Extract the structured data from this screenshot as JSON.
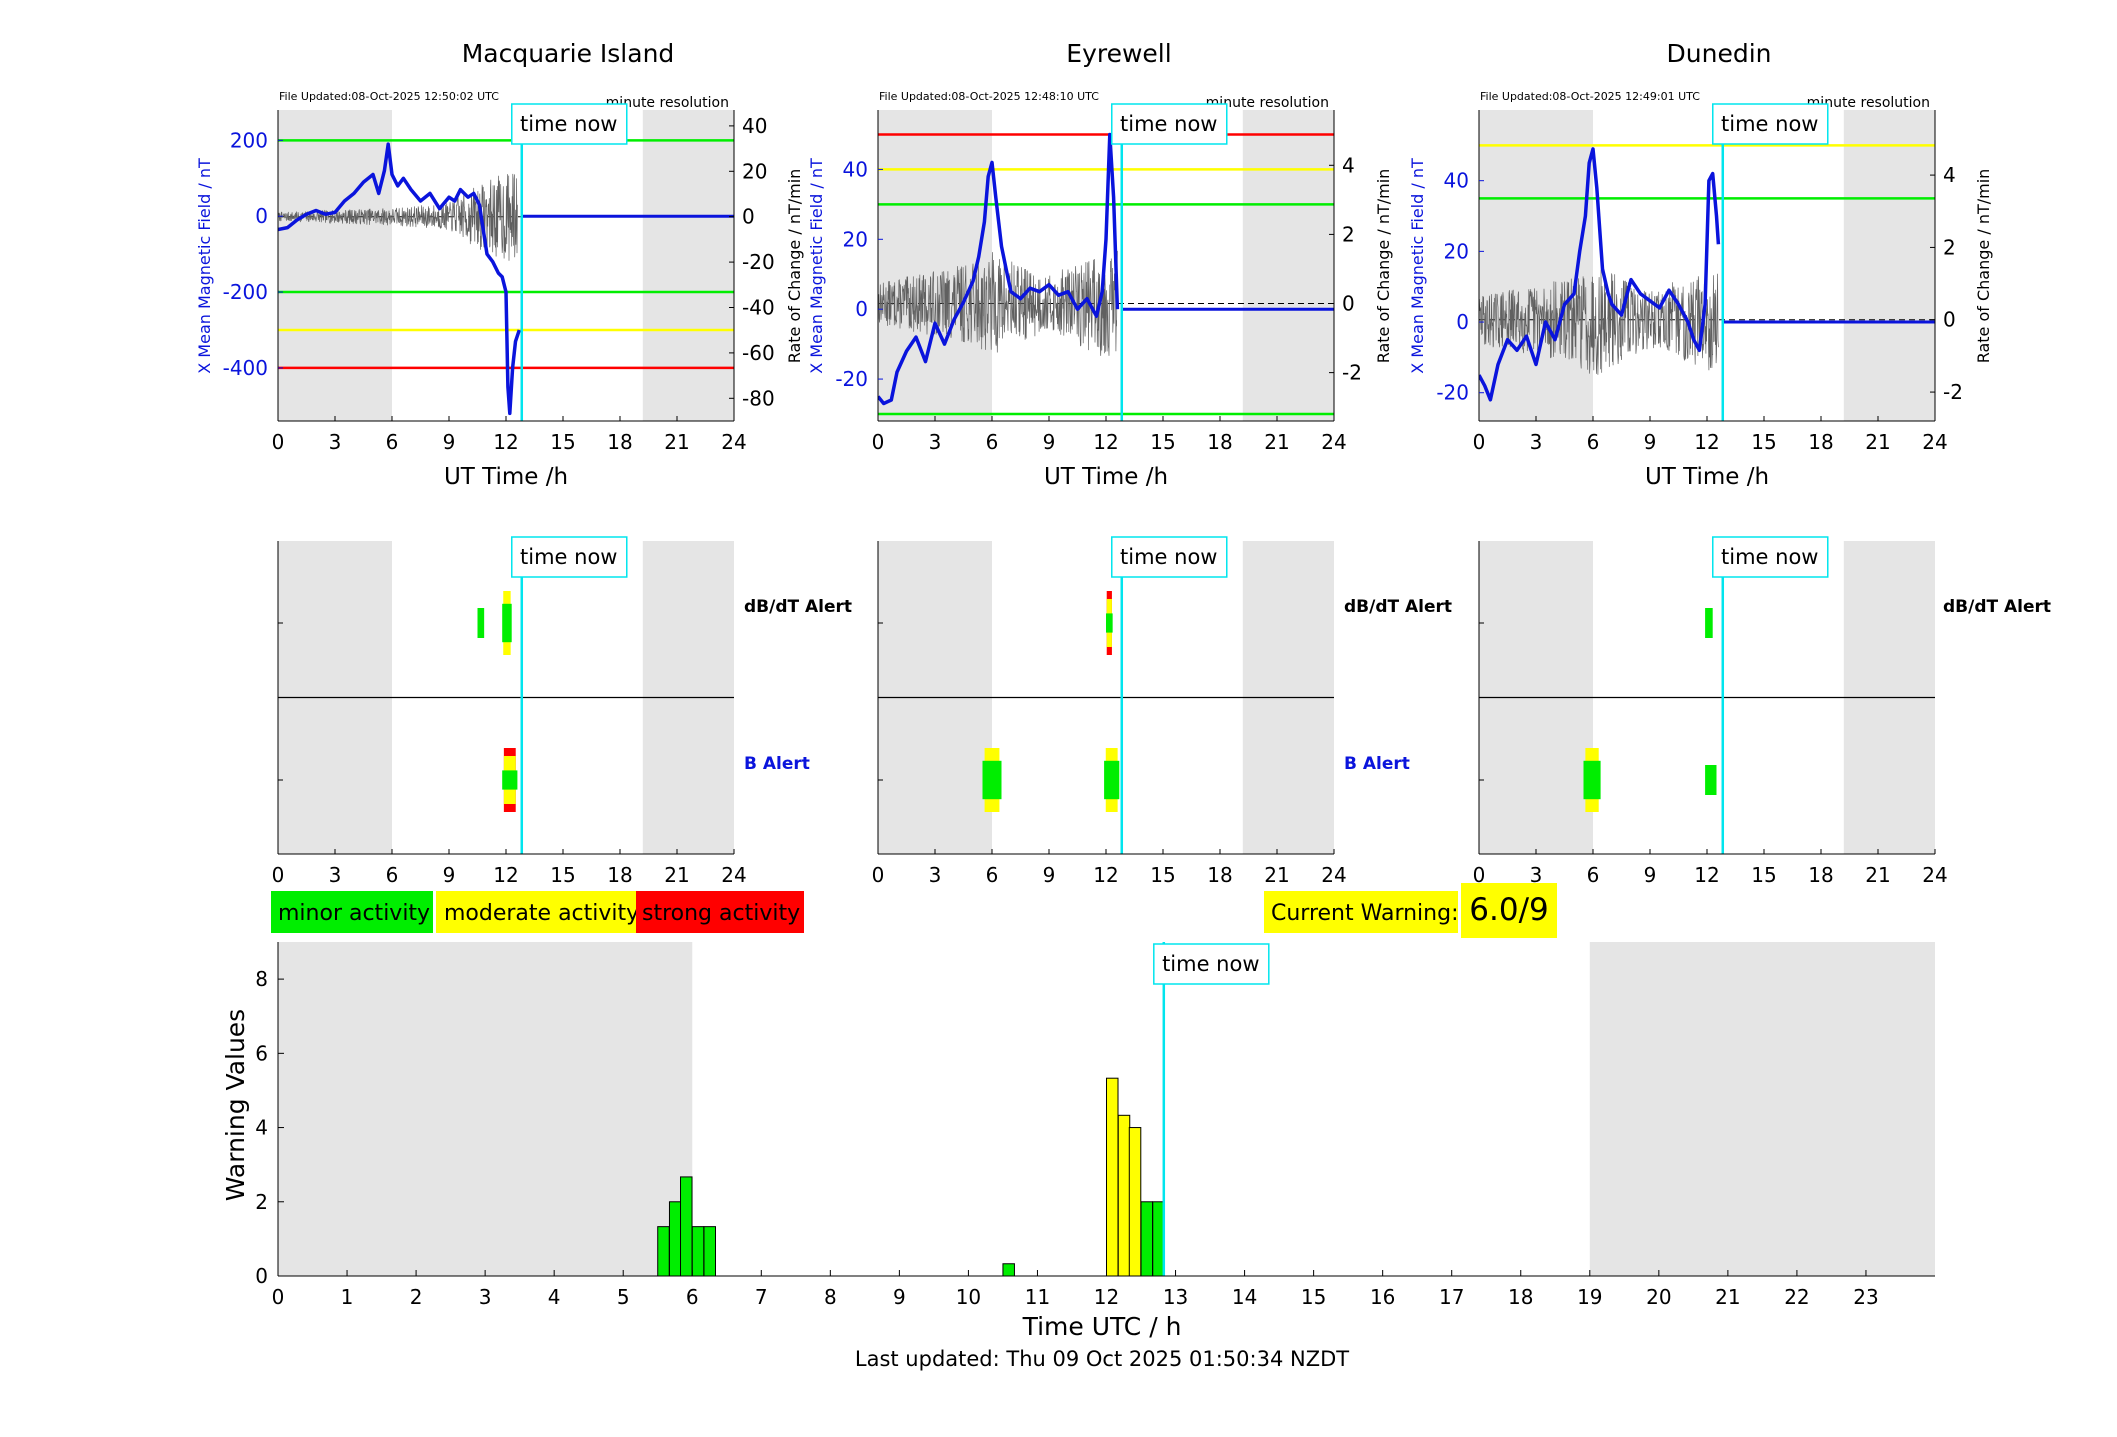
{
  "colors": {
    "field_line": "#0a14dc",
    "noise_line": "#606060",
    "zero_dash": "#000000",
    "time_now": "#00e5ee",
    "shade": "#e5e5e5",
    "green": "#00ee00",
    "yellow": "#ffff00",
    "red": "#ff0000"
  },
  "labels": {
    "time_now": "time now",
    "minute_resolution": "minute resolution",
    "xlabel_top": "UT Time /h",
    "ylabel_left": "X Mean Magnetic Field / nT",
    "ylabel_right": "Rate of Change / nT/min",
    "dbdt_alert": "dB/dT Alert",
    "b_alert": "B Alert",
    "legend_minor": "minor activity",
    "legend_moderate": "moderate activity",
    "legend_strong": "strong activity",
    "current_warning_label": "Current Warning:",
    "current_warning_value": "6.0/9",
    "bottom_ylabel": "Warning Values",
    "bottom_xlabel": "Time UTC / h",
    "last_updated": "Last updated: Thu 09 Oct 2025 01:50:34 NZDT"
  },
  "chart_data": [
    {
      "type": "line",
      "title": "Macquarie Island",
      "file_updated": "File Updated:08-Oct-2025 12:50:02 UTC",
      "xlabel": "UT Time /h",
      "xlim": [
        0,
        24
      ],
      "xticks": [
        0,
        3,
        6,
        9,
        12,
        15,
        18,
        21,
        24
      ],
      "ylim_left": [
        -540,
        280
      ],
      "yticks_left": [
        -400,
        -200,
        0,
        200
      ],
      "ylim_right": [
        -90,
        47
      ],
      "yticks_right": [
        -80,
        -60,
        -40,
        -20,
        0,
        20,
        40
      ],
      "shaded_hours": [
        [
          0,
          6
        ],
        [
          19.2,
          24
        ]
      ],
      "time_now": 12.83,
      "thresholds": [
        {
          "value": 200,
          "color": "green"
        },
        {
          "value": -200,
          "color": "green"
        },
        {
          "value": -300,
          "color": "yellow"
        },
        {
          "value": -400,
          "color": "red"
        }
      ],
      "series": [
        {
          "axis": "left",
          "style": "field",
          "x": [
            0,
            0.5,
            1,
            1.5,
            2,
            2.5,
            3,
            3.5,
            4,
            4.5,
            5,
            5.3,
            5.6,
            5.8,
            6,
            6.3,
            6.6,
            7,
            7.5,
            8,
            8.5,
            9,
            9.3,
            9.6,
            10,
            10.3,
            10.6,
            11,
            11.3,
            11.6,
            11.8,
            12,
            12.1,
            12.2,
            12.35,
            12.5,
            12.7
          ],
          "y": [
            -35,
            -30,
            -10,
            5,
            15,
            5,
            10,
            40,
            60,
            90,
            110,
            60,
            120,
            190,
            110,
            80,
            100,
            70,
            40,
            60,
            20,
            50,
            40,
            70,
            50,
            60,
            30,
            -100,
            -120,
            -150,
            -160,
            -200,
            -450,
            -520,
            -400,
            -330,
            -300
          ]
        },
        {
          "axis": "left",
          "style": "flat",
          "x": [
            12.83,
            24
          ],
          "y": [
            0,
            0
          ]
        },
        {
          "axis": "right",
          "style": "noise",
          "x0": 0,
          "x1": 12.6,
          "amp": [
            [
              0,
              2
            ],
            [
              6,
              4
            ],
            [
              9,
              6
            ],
            [
              10,
              12
            ],
            [
              12,
              20
            ]
          ],
          "seed": 7
        }
      ]
    },
    {
      "type": "line",
      "title": "Eyrewell",
      "file_updated": "File Updated:08-Oct-2025 12:48:10 UTC",
      "xlabel": "UT Time /h",
      "xlim": [
        0,
        24
      ],
      "xticks": [
        0,
        3,
        6,
        9,
        12,
        15,
        18,
        21,
        24
      ],
      "ylim_left": [
        -32,
        57
      ],
      "yticks_left": [
        -20,
        0,
        20,
        40
      ],
      "ylim_right": [
        -3.4,
        5.6
      ],
      "yticks_right": [
        -2,
        0,
        2,
        4
      ],
      "shaded_hours": [
        [
          0,
          6
        ],
        [
          19.2,
          24
        ]
      ],
      "time_now": 12.83,
      "thresholds": [
        {
          "value": 50,
          "color": "red"
        },
        {
          "value": 40,
          "color": "yellow"
        },
        {
          "value": 30,
          "color": "green"
        },
        {
          "value": -30,
          "color": "green"
        }
      ],
      "series": [
        {
          "axis": "left",
          "style": "field",
          "x": [
            0,
            0.3,
            0.7,
            1,
            1.5,
            2,
            2.5,
            3,
            3.5,
            4,
            4.5,
            5,
            5.3,
            5.6,
            5.8,
            6,
            6.2,
            6.5,
            6.8,
            7,
            7.5,
            8,
            8.5,
            9,
            9.5,
            10,
            10.5,
            11,
            11.5,
            11.8,
            12,
            12.2,
            12.4,
            12.6
          ],
          "y": [
            -25,
            -27,
            -26,
            -18,
            -12,
            -8,
            -15,
            -4,
            -10,
            -3,
            2,
            8,
            15,
            25,
            38,
            42,
            32,
            18,
            10,
            5,
            3,
            6,
            5,
            7,
            4,
            5,
            0,
            3,
            -2,
            5,
            20,
            50,
            32,
            0
          ]
        },
        {
          "axis": "left",
          "style": "flat",
          "x": [
            12.83,
            24
          ],
          "y": [
            0,
            0
          ]
        },
        {
          "axis": "right",
          "style": "noise",
          "x0": 0,
          "x1": 12.6,
          "amp": [
            [
              0,
              0.6
            ],
            [
              5,
              1.2
            ],
            [
              6,
              1.5
            ],
            [
              9,
              0.8
            ],
            [
              12,
              1.6
            ]
          ],
          "seed": 13
        }
      ]
    },
    {
      "type": "line",
      "title": "Dunedin",
      "file_updated": "File Updated:08-Oct-2025 12:49:01 UTC",
      "xlabel": "UT Time /h",
      "xlim": [
        0,
        24
      ],
      "xticks": [
        0,
        3,
        6,
        9,
        12,
        15,
        18,
        21,
        24
      ],
      "ylim_left": [
        -28,
        60
      ],
      "yticks_left": [
        -20,
        0,
        20,
        40
      ],
      "ylim_right": [
        -2.8,
        5.8
      ],
      "yticks_right": [
        -2,
        0,
        2,
        4
      ],
      "shaded_hours": [
        [
          0,
          6
        ],
        [
          19.2,
          24
        ]
      ],
      "time_now": 12.83,
      "thresholds": [
        {
          "value": 50,
          "color": "yellow"
        },
        {
          "value": 35,
          "color": "green"
        }
      ],
      "series": [
        {
          "axis": "left",
          "style": "field",
          "x": [
            0,
            0.3,
            0.6,
            1,
            1.5,
            2,
            2.5,
            3,
            3.5,
            4,
            4.5,
            5,
            5.3,
            5.6,
            5.8,
            6,
            6.2,
            6.5,
            6.8,
            7,
            7.5,
            8,
            8.5,
            9,
            9.5,
            10,
            10.5,
            11,
            11.3,
            11.6,
            11.9,
            12.1,
            12.3,
            12.5,
            12.6
          ],
          "y": [
            -15,
            -18,
            -22,
            -12,
            -5,
            -8,
            -4,
            -12,
            0,
            -5,
            5,
            8,
            20,
            30,
            45,
            49,
            38,
            15,
            8,
            5,
            2,
            12,
            8,
            6,
            4,
            9,
            5,
            0,
            -5,
            -8,
            5,
            40,
            42,
            30,
            22
          ]
        },
        {
          "axis": "left",
          "style": "flat",
          "x": [
            12.83,
            24
          ],
          "y": [
            0,
            0
          ]
        },
        {
          "axis": "right",
          "style": "noise",
          "x0": 0,
          "x1": 12.6,
          "amp": [
            [
              0,
              0.7
            ],
            [
              5,
              1.2
            ],
            [
              6,
              1.6
            ],
            [
              9,
              0.8
            ],
            [
              12,
              1.4
            ]
          ],
          "seed": 29
        }
      ]
    },
    {
      "type": "bar",
      "panel": "alerts",
      "station": "Macquarie Island",
      "xlim": [
        0,
        24
      ],
      "xticks": [
        0,
        3,
        6,
        9,
        12,
        15,
        18,
        21,
        24
      ],
      "time_now": 12.83,
      "rows": [
        "dB/dT Alert",
        "B Alert"
      ],
      "alerts": [
        {
          "row": "dB/dT Alert",
          "start": 10.5,
          "end": 10.85,
          "level": "minor"
        },
        {
          "row": "dB/dT Alert",
          "start": 11.8,
          "end": 12.3,
          "level": "moderate"
        },
        {
          "row": "B Alert",
          "start": 11.8,
          "end": 12.6,
          "level": "strong"
        }
      ]
    },
    {
      "type": "bar",
      "panel": "alerts",
      "station": "Eyrewell",
      "xlim": [
        0,
        24
      ],
      "xticks": [
        0,
        3,
        6,
        9,
        12,
        15,
        18,
        21,
        24
      ],
      "time_now": 12.83,
      "rows": [
        "dB/dT Alert",
        "B Alert"
      ],
      "alerts": [
        {
          "row": "dB/dT Alert",
          "start": 12.0,
          "end": 12.35,
          "level": "strong"
        },
        {
          "row": "B Alert",
          "start": 5.5,
          "end": 6.5,
          "level": "moderate"
        },
        {
          "row": "B Alert",
          "start": 11.9,
          "end": 12.7,
          "level": "moderate"
        }
      ]
    },
    {
      "type": "bar",
      "panel": "alerts",
      "station": "Dunedin",
      "xlim": [
        0,
        24
      ],
      "xticks": [
        0,
        3,
        6,
        9,
        12,
        15,
        18,
        21,
        24
      ],
      "time_now": 12.83,
      "rows": [
        "dB/dT Alert",
        "B Alert"
      ],
      "alerts": [
        {
          "row": "dB/dT Alert",
          "start": 11.9,
          "end": 12.3,
          "level": "minor"
        },
        {
          "row": "B Alert",
          "start": 5.5,
          "end": 6.4,
          "level": "moderate"
        },
        {
          "row": "B Alert",
          "start": 11.9,
          "end": 12.5,
          "level": "minor"
        }
      ]
    },
    {
      "type": "bar",
      "panel": "warning",
      "xlabel": "Time UTC / h",
      "ylabel": "Warning Values",
      "xlim": [
        0,
        24
      ],
      "xticks": [
        0,
        1,
        2,
        3,
        4,
        5,
        6,
        7,
        8,
        9,
        10,
        11,
        12,
        13,
        14,
        15,
        16,
        17,
        18,
        19,
        20,
        21,
        22,
        23
      ],
      "ylim": [
        0,
        9
      ],
      "yticks": [
        0,
        2,
        4,
        6,
        8
      ],
      "time_now": 12.83,
      "bar_width_hours": 0.1667,
      "bars": [
        {
          "x": 5.5,
          "value": 1.33,
          "color": "green"
        },
        {
          "x": 5.67,
          "value": 2.0,
          "color": "green"
        },
        {
          "x": 5.83,
          "value": 2.67,
          "color": "green"
        },
        {
          "x": 6.0,
          "value": 1.33,
          "color": "green"
        },
        {
          "x": 6.17,
          "value": 1.33,
          "color": "green"
        },
        {
          "x": 10.5,
          "value": 0.33,
          "color": "green"
        },
        {
          "x": 12.0,
          "value": 5.33,
          "color": "yellow"
        },
        {
          "x": 12.17,
          "value": 4.33,
          "color": "yellow"
        },
        {
          "x": 12.33,
          "value": 4.0,
          "color": "yellow"
        },
        {
          "x": 12.5,
          "value": 2.0,
          "color": "green"
        },
        {
          "x": 12.67,
          "value": 2.0,
          "color": "green"
        }
      ]
    }
  ]
}
